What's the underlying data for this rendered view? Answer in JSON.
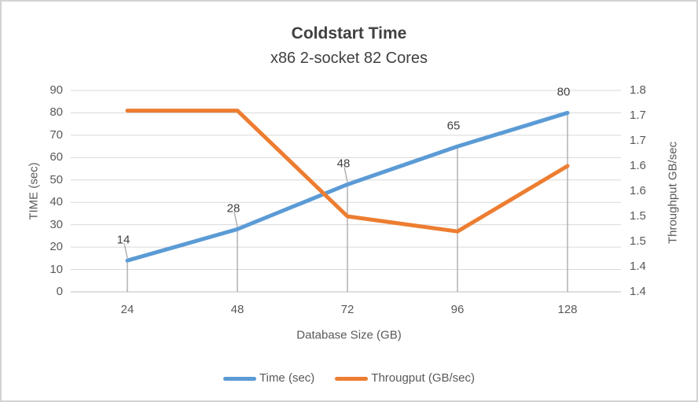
{
  "chart_data": {
    "type": "line",
    "title": "Coldstart Time",
    "subtitle": "x86 2-socket 82 Cores",
    "x_axis": {
      "title": "Database Size (GB)",
      "categories": [
        "24",
        "48",
        "72",
        "96",
        "128"
      ]
    },
    "left_axis": {
      "title": "TIME (sec)",
      "min": 0,
      "max": 90,
      "major_unit": 10,
      "tick_labels_top_to_bottom": [
        "90",
        "80",
        "70",
        "60",
        "50",
        "40",
        "30",
        "20",
        "10",
        "0"
      ]
    },
    "right_axis": {
      "title": "Throughput GB/sec",
      "min": 1.4,
      "max": 1.8,
      "major_unit": 0.05,
      "tick_labels_top_to_bottom": [
        "1.8",
        "1.7",
        "1.7",
        "1.6",
        "1.6",
        "1.5",
        "1.5",
        "1.4",
        "1.4"
      ]
    },
    "series": [
      {
        "name": "Time (sec)",
        "axis": "left",
        "color": "#5B9BD5",
        "values": [
          14,
          28,
          48,
          65,
          80
        ],
        "data_labels": [
          "14",
          "28",
          "48",
          "65",
          "80"
        ]
      },
      {
        "name": "Througput (GB/sec)",
        "axis": "right",
        "color": "#ED7D31",
        "values": [
          1.76,
          1.76,
          1.55,
          1.52,
          1.65
        ]
      }
    ],
    "grid": true,
    "legend_position": "bottom",
    "colors": {
      "gridline": "#D9D9D9",
      "axis_line": "#C9C9C9",
      "drop_line": "#A6A6A6",
      "tick_text": "#595959",
      "title_text": "#404040",
      "border": "#D3D3D3"
    }
  }
}
